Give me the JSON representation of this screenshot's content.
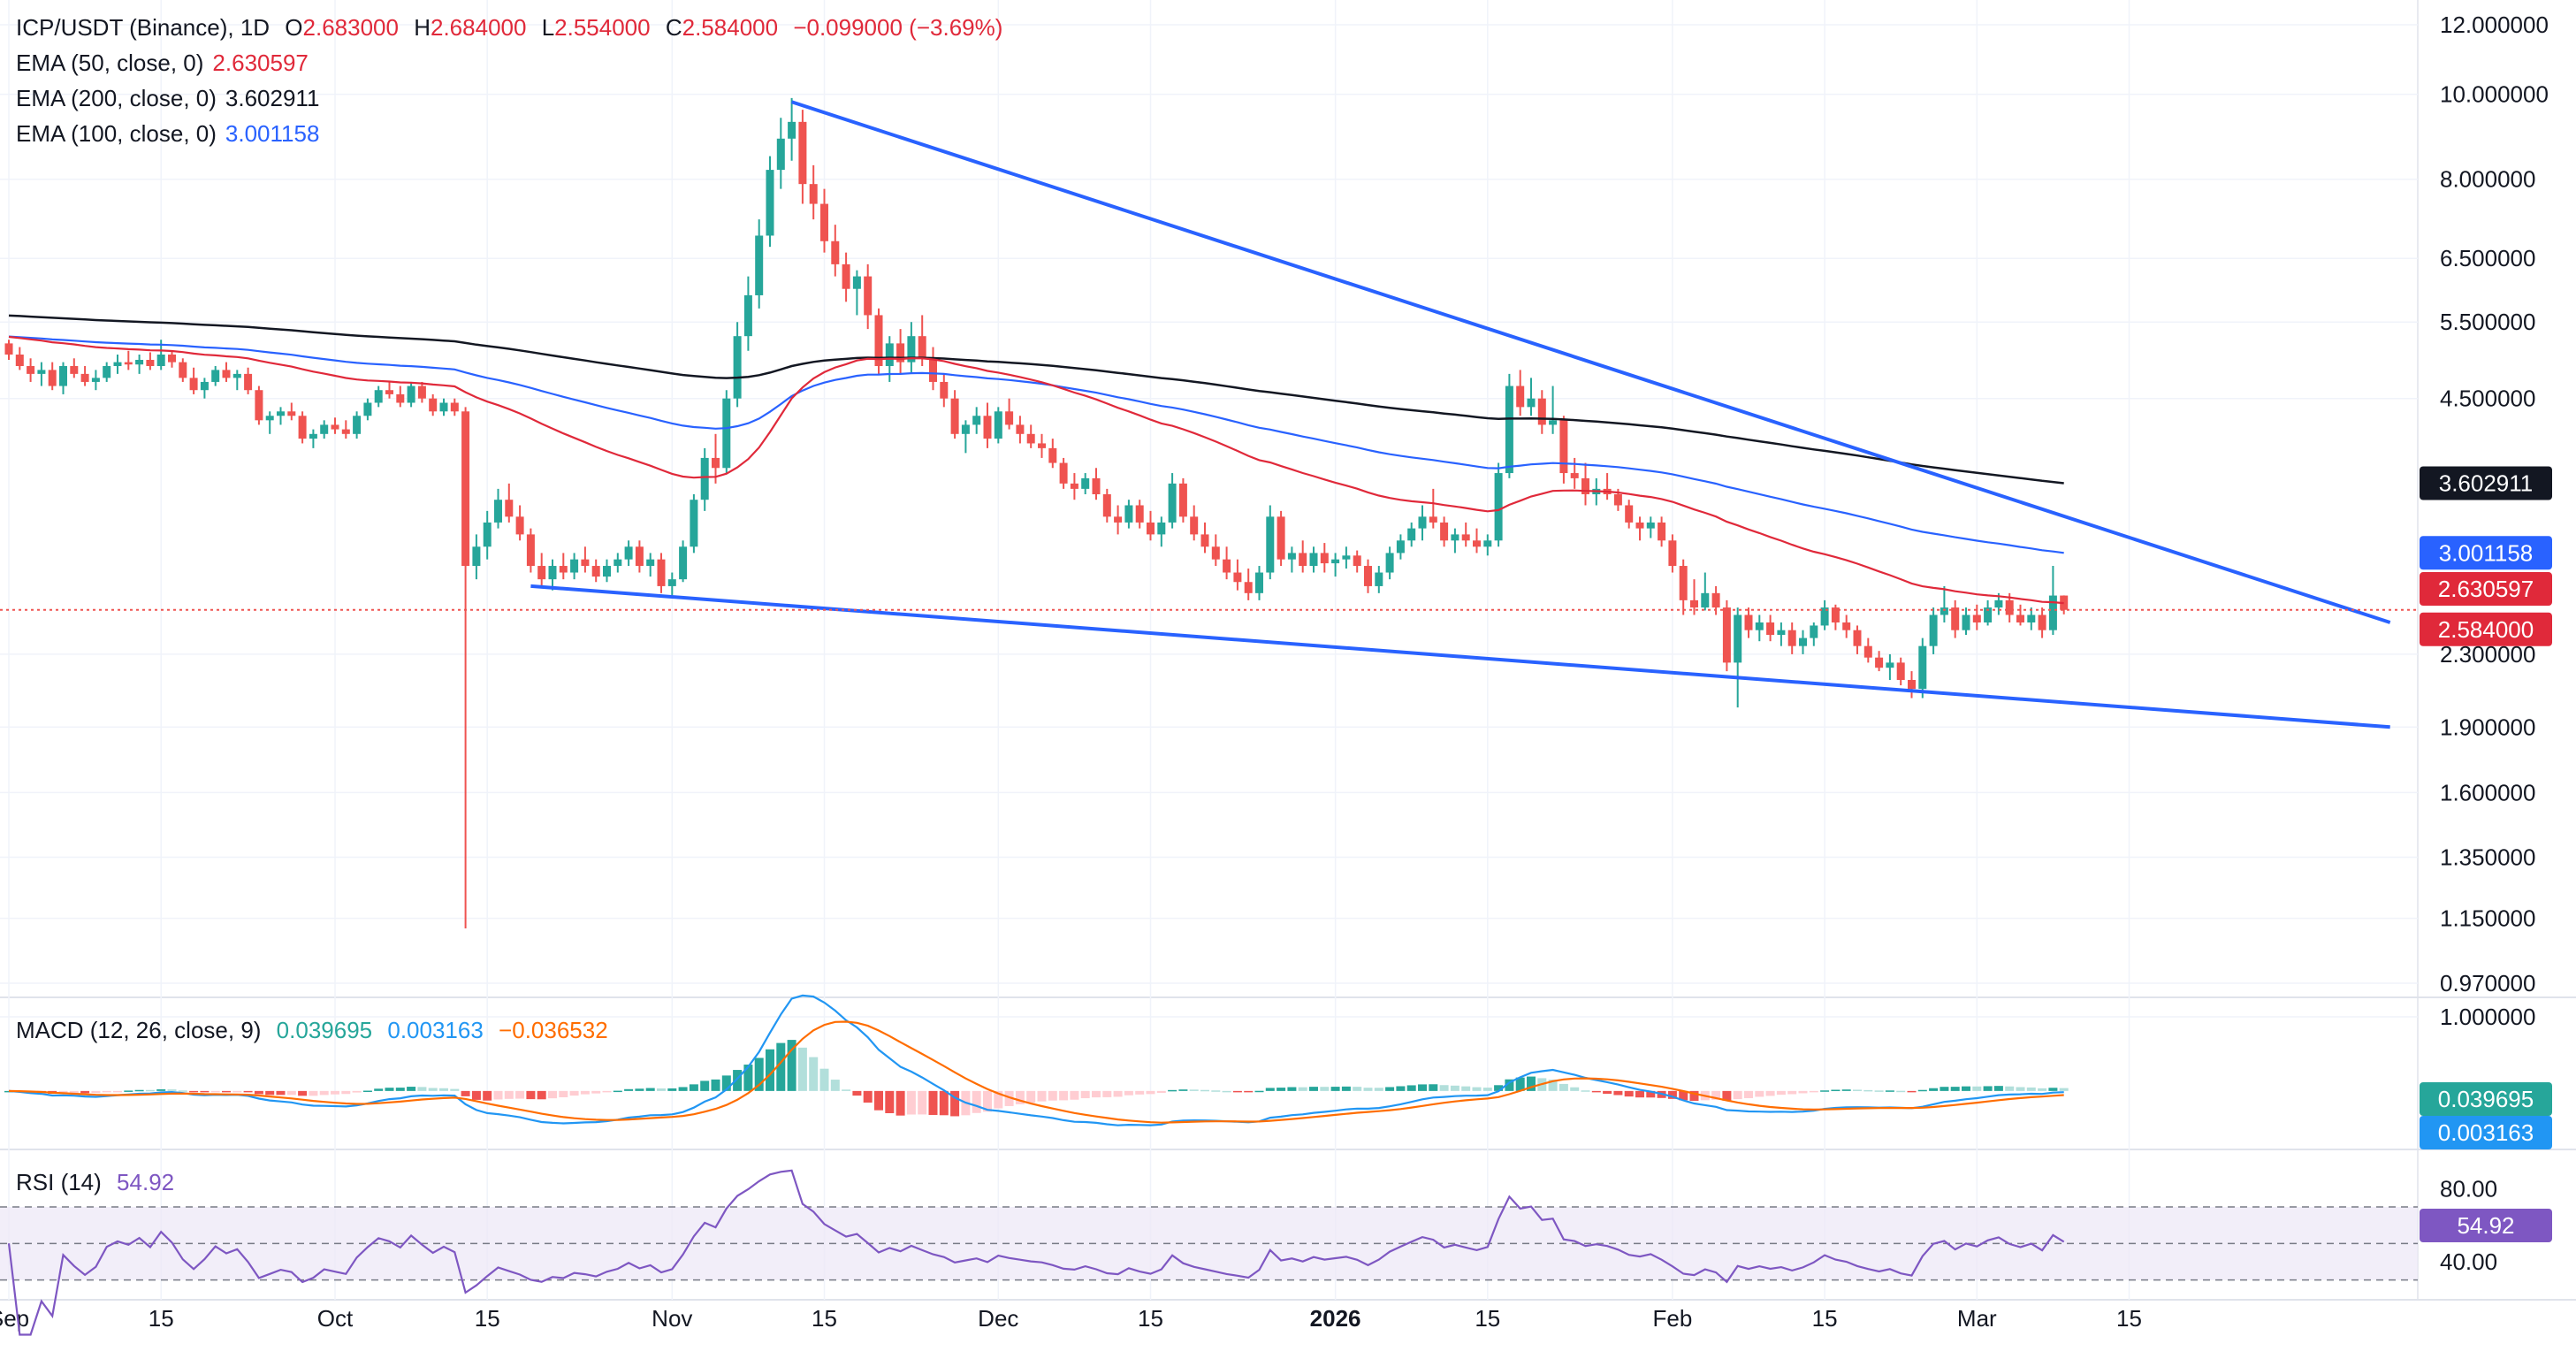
{
  "header": {
    "symbol": "ICP/USDT (Binance), 1D",
    "open_label": "O",
    "open": "2.683000",
    "high_label": "H",
    "high": "2.684000",
    "low_label": "L",
    "low": "2.554000",
    "close_label": "C",
    "close": "2.584000",
    "change": "−0.099000 (−3.69%)"
  },
  "indicators": {
    "ema50": {
      "label": "EMA (50, close, 0)",
      "value": "2.630597",
      "color": "#e0293a"
    },
    "ema200": {
      "label": "EMA (200, close, 0)",
      "value": "3.602911",
      "color": "#131722"
    },
    "ema100": {
      "label": "EMA (100, close, 0)",
      "value": "3.001158",
      "color": "#2962ff"
    },
    "macd": {
      "label": "MACD (12, 26, close, 9)",
      "hist": "0.039695",
      "macd": "0.003163",
      "signal": "−0.036532"
    },
    "rsi": {
      "label": "RSI (14)",
      "value": "54.92"
    }
  },
  "price_badges": {
    "ema200": "3.602911",
    "ema100": "3.001158",
    "ema50": "2.630597",
    "last": "2.584000",
    "macd_hist": "0.039695",
    "macd": "0.003163",
    "rsi": "54.92"
  },
  "colors": {
    "up": "#26a69a",
    "down": "#ef5350",
    "ema50": "#e0293a",
    "ema100": "#2962ff",
    "ema200": "#131722",
    "trendline": "#2962ff",
    "macd": "#2196f3",
    "signal": "#ff6d00",
    "rsi": "#7e57c2"
  },
  "chart_data": {
    "type": "candlestick",
    "price_axis": {
      "scale": "log",
      "ticks": [
        "12.000000",
        "10.000000",
        "8.000000",
        "6.500000",
        "5.500000",
        "4.500000",
        "2.300000",
        "1.900000",
        "1.600000",
        "1.350000",
        "1.150000",
        "0.970000"
      ]
    },
    "macd_axis_ticks": [
      "1.000000"
    ],
    "rsi_axis_ticks": [
      "80.00",
      "40.00"
    ],
    "time_axis": {
      "labels": [
        "Sep",
        "15",
        "Oct",
        "15",
        "Nov",
        "15",
        "Dec",
        "15",
        "2026",
        "15",
        "Feb",
        "15",
        "Mar",
        "15"
      ],
      "label_days": [
        0,
        14,
        30,
        44,
        61,
        75,
        91,
        105,
        122,
        136,
        153,
        167,
        181,
        195
      ]
    },
    "candles": [
      [
        5.2,
        5.25,
        4.98,
        5.05
      ],
      [
        5.05,
        5.15,
        4.85,
        4.9
      ],
      [
        4.9,
        5.0,
        4.7,
        4.8
      ],
      [
        4.8,
        4.95,
        4.65,
        4.85
      ],
      [
        4.85,
        4.95,
        4.6,
        4.65
      ],
      [
        4.65,
        4.95,
        4.55,
        4.9
      ],
      [
        4.9,
        5.0,
        4.75,
        4.8
      ],
      [
        4.8,
        4.9,
        4.65,
        4.7
      ],
      [
        4.7,
        4.85,
        4.6,
        4.75
      ],
      [
        4.75,
        4.95,
        4.7,
        4.9
      ],
      [
        4.9,
        5.05,
        4.8,
        4.95
      ],
      [
        4.95,
        5.1,
        4.85,
        4.92
      ],
      [
        4.92,
        5.05,
        4.8,
        4.98
      ],
      [
        4.98,
        5.08,
        4.85,
        4.9
      ],
      [
        4.9,
        5.25,
        4.85,
        5.05
      ],
      [
        5.05,
        5.1,
        4.88,
        4.95
      ],
      [
        4.95,
        5.0,
        4.7,
        4.75
      ],
      [
        4.75,
        4.88,
        4.55,
        4.6
      ],
      [
        4.6,
        4.75,
        4.5,
        4.7
      ],
      [
        4.7,
        4.9,
        4.65,
        4.85
      ],
      [
        4.85,
        4.95,
        4.7,
        4.75
      ],
      [
        4.75,
        4.85,
        4.6,
        4.8
      ],
      [
        4.8,
        4.88,
        4.55,
        4.6
      ],
      [
        4.6,
        4.65,
        4.2,
        4.25
      ],
      [
        4.25,
        4.35,
        4.1,
        4.3
      ],
      [
        4.3,
        4.4,
        4.2,
        4.35
      ],
      [
        4.35,
        4.45,
        4.25,
        4.3
      ],
      [
        4.3,
        4.35,
        4.0,
        4.05
      ],
      [
        4.05,
        4.15,
        3.95,
        4.1
      ],
      [
        4.1,
        4.25,
        4.05,
        4.2
      ],
      [
        4.2,
        4.28,
        4.1,
        4.15
      ],
      [
        4.15,
        4.25,
        4.05,
        4.1
      ],
      [
        4.1,
        4.35,
        4.05,
        4.3
      ],
      [
        4.3,
        4.5,
        4.25,
        4.45
      ],
      [
        4.45,
        4.65,
        4.4,
        4.6
      ],
      [
        4.6,
        4.7,
        4.5,
        4.55
      ],
      [
        4.55,
        4.65,
        4.4,
        4.45
      ],
      [
        4.45,
        4.7,
        4.4,
        4.65
      ],
      [
        4.65,
        4.7,
        4.45,
        4.5
      ],
      [
        4.5,
        4.55,
        4.3,
        4.35
      ],
      [
        4.35,
        4.5,
        4.3,
        4.45
      ],
      [
        4.45,
        4.5,
        4.3,
        4.35
      ],
      [
        4.35,
        4.4,
        1.12,
        2.9
      ],
      [
        2.9,
        3.15,
        2.8,
        3.05
      ],
      [
        3.05,
        3.35,
        2.95,
        3.25
      ],
      [
        3.25,
        3.55,
        3.2,
        3.45
      ],
      [
        3.45,
        3.6,
        3.25,
        3.3
      ],
      [
        3.3,
        3.4,
        3.1,
        3.15
      ],
      [
        3.15,
        3.2,
        2.85,
        2.9
      ],
      [
        2.9,
        3.0,
        2.75,
        2.8
      ],
      [
        2.8,
        2.95,
        2.72,
        2.9
      ],
      [
        2.9,
        3.0,
        2.8,
        2.85
      ],
      [
        2.85,
        3.0,
        2.8,
        2.95
      ],
      [
        2.95,
        3.05,
        2.85,
        2.9
      ],
      [
        2.9,
        2.95,
        2.78,
        2.82
      ],
      [
        2.82,
        2.95,
        2.78,
        2.9
      ],
      [
        2.9,
        3.0,
        2.85,
        2.95
      ],
      [
        2.95,
        3.1,
        2.9,
        3.05
      ],
      [
        3.05,
        3.1,
        2.85,
        2.9
      ],
      [
        2.9,
        3.0,
        2.82,
        2.95
      ],
      [
        2.95,
        3.0,
        2.7,
        2.75
      ],
      [
        2.75,
        2.85,
        2.68,
        2.8
      ],
      [
        2.8,
        3.1,
        2.78,
        3.05
      ],
      [
        3.05,
        3.5,
        3.0,
        3.45
      ],
      [
        3.45,
        3.95,
        3.35,
        3.85
      ],
      [
        3.85,
        4.1,
        3.6,
        3.75
      ],
      [
        3.75,
        4.6,
        3.7,
        4.5
      ],
      [
        4.5,
        5.5,
        4.4,
        5.3
      ],
      [
        5.3,
        6.2,
        5.1,
        5.9
      ],
      [
        5.9,
        7.2,
        5.7,
        6.9
      ],
      [
        6.9,
        8.5,
        6.7,
        8.2
      ],
      [
        8.2,
        9.4,
        7.8,
        8.9
      ],
      [
        8.9,
        9.9,
        8.4,
        9.3
      ],
      [
        9.3,
        9.6,
        7.5,
        7.9
      ],
      [
        7.9,
        8.3,
        7.2,
        7.5
      ],
      [
        7.5,
        7.8,
        6.6,
        6.8
      ],
      [
        6.8,
        7.1,
        6.2,
        6.4
      ],
      [
        6.4,
        6.6,
        5.8,
        6.0
      ],
      [
        6.0,
        6.3,
        5.6,
        6.2
      ],
      [
        6.2,
        6.4,
        5.4,
        5.6
      ],
      [
        5.6,
        5.7,
        4.8,
        4.9
      ],
      [
        4.9,
        5.3,
        4.7,
        5.2
      ],
      [
        5.2,
        5.4,
        4.8,
        4.95
      ],
      [
        4.95,
        5.5,
        4.8,
        5.3
      ],
      [
        5.3,
        5.6,
        4.9,
        5.0
      ],
      [
        5.0,
        5.15,
        4.6,
        4.7
      ],
      [
        4.7,
        4.8,
        4.4,
        4.5
      ],
      [
        4.5,
        4.6,
        4.05,
        4.1
      ],
      [
        4.1,
        4.25,
        3.9,
        4.2
      ],
      [
        4.2,
        4.4,
        4.1,
        4.3
      ],
      [
        4.3,
        4.45,
        3.95,
        4.05
      ],
      [
        4.05,
        4.4,
        4.0,
        4.35
      ],
      [
        4.35,
        4.5,
        4.15,
        4.2
      ],
      [
        4.2,
        4.3,
        4.0,
        4.1
      ],
      [
        4.1,
        4.2,
        3.95,
        4.0
      ],
      [
        4.0,
        4.1,
        3.85,
        3.95
      ],
      [
        3.95,
        4.05,
        3.75,
        3.8
      ],
      [
        3.8,
        3.85,
        3.55,
        3.6
      ],
      [
        3.6,
        3.7,
        3.45,
        3.55
      ],
      [
        3.55,
        3.7,
        3.5,
        3.65
      ],
      [
        3.65,
        3.75,
        3.45,
        3.5
      ],
      [
        3.5,
        3.55,
        3.25,
        3.3
      ],
      [
        3.3,
        3.4,
        3.15,
        3.25
      ],
      [
        3.25,
        3.45,
        3.2,
        3.4
      ],
      [
        3.4,
        3.45,
        3.2,
        3.25
      ],
      [
        3.25,
        3.35,
        3.1,
        3.15
      ],
      [
        3.15,
        3.3,
        3.05,
        3.25
      ],
      [
        3.25,
        3.7,
        3.2,
        3.6
      ],
      [
        3.6,
        3.65,
        3.25,
        3.3
      ],
      [
        3.3,
        3.4,
        3.1,
        3.15
      ],
      [
        3.15,
        3.25,
        3.0,
        3.05
      ],
      [
        3.05,
        3.15,
        2.9,
        2.95
      ],
      [
        2.95,
        3.05,
        2.8,
        2.85
      ],
      [
        2.85,
        2.95,
        2.72,
        2.78
      ],
      [
        2.78,
        2.88,
        2.65,
        2.7
      ],
      [
        2.7,
        2.9,
        2.65,
        2.85
      ],
      [
        2.85,
        3.4,
        2.8,
        3.3
      ],
      [
        3.3,
        3.35,
        2.9,
        2.95
      ],
      [
        2.95,
        3.05,
        2.85,
        3.0
      ],
      [
        3.0,
        3.1,
        2.85,
        2.9
      ],
      [
        2.9,
        3.05,
        2.85,
        3.0
      ],
      [
        3.0,
        3.08,
        2.85,
        2.92
      ],
      [
        2.92,
        3.0,
        2.82,
        2.95
      ],
      [
        2.95,
        3.05,
        2.88,
        2.98
      ],
      [
        2.98,
        3.02,
        2.85,
        2.9
      ],
      [
        2.9,
        2.95,
        2.7,
        2.75
      ],
      [
        2.75,
        2.9,
        2.7,
        2.85
      ],
      [
        2.85,
        3.05,
        2.8,
        3.0
      ],
      [
        3.0,
        3.15,
        2.95,
        3.1
      ],
      [
        3.1,
        3.25,
        3.05,
        3.2
      ],
      [
        3.2,
        3.4,
        3.1,
        3.3
      ],
      [
        3.3,
        3.55,
        3.2,
        3.25
      ],
      [
        3.25,
        3.3,
        3.05,
        3.1
      ],
      [
        3.1,
        3.2,
        3.0,
        3.15
      ],
      [
        3.15,
        3.25,
        3.05,
        3.1
      ],
      [
        3.1,
        3.2,
        3.0,
        3.05
      ],
      [
        3.05,
        3.15,
        2.98,
        3.1
      ],
      [
        3.1,
        3.8,
        3.05,
        3.7
      ],
      [
        3.7,
        4.8,
        3.65,
        4.65
      ],
      [
        4.65,
        4.85,
        4.3,
        4.4
      ],
      [
        4.4,
        4.75,
        4.3,
        4.5
      ],
      [
        4.5,
        4.6,
        4.1,
        4.2
      ],
      [
        4.2,
        4.65,
        4.1,
        4.25
      ],
      [
        4.25,
        4.3,
        3.6,
        3.7
      ],
      [
        3.7,
        3.85,
        3.55,
        3.65
      ],
      [
        3.65,
        3.8,
        3.4,
        3.5
      ],
      [
        3.5,
        3.65,
        3.4,
        3.55
      ],
      [
        3.55,
        3.7,
        3.45,
        3.5
      ],
      [
        3.5,
        3.55,
        3.35,
        3.4
      ],
      [
        3.4,
        3.45,
        3.2,
        3.25
      ],
      [
        3.25,
        3.3,
        3.1,
        3.2
      ],
      [
        3.2,
        3.3,
        3.12,
        3.25
      ],
      [
        3.25,
        3.3,
        3.05,
        3.1
      ],
      [
        3.1,
        3.15,
        2.85,
        2.9
      ],
      [
        2.9,
        2.95,
        2.55,
        2.65
      ],
      [
        2.65,
        2.8,
        2.55,
        2.6
      ],
      [
        2.6,
        2.85,
        2.58,
        2.7
      ],
      [
        2.7,
        2.75,
        2.55,
        2.6
      ],
      [
        2.6,
        2.65,
        2.2,
        2.25
      ],
      [
        2.25,
        2.6,
        2.0,
        2.55
      ],
      [
        2.55,
        2.6,
        2.4,
        2.45
      ],
      [
        2.45,
        2.55,
        2.38,
        2.5
      ],
      [
        2.5,
        2.55,
        2.38,
        2.42
      ],
      [
        2.42,
        2.5,
        2.35,
        2.45
      ],
      [
        2.45,
        2.5,
        2.3,
        2.35
      ],
      [
        2.35,
        2.45,
        2.3,
        2.4
      ],
      [
        2.4,
        2.5,
        2.35,
        2.48
      ],
      [
        2.48,
        2.65,
        2.45,
        2.6
      ],
      [
        2.6,
        2.62,
        2.45,
        2.5
      ],
      [
        2.5,
        2.55,
        2.4,
        2.45
      ],
      [
        2.45,
        2.48,
        2.3,
        2.35
      ],
      [
        2.35,
        2.4,
        2.25,
        2.28
      ],
      [
        2.28,
        2.32,
        2.2,
        2.22
      ],
      [
        2.22,
        2.3,
        2.15,
        2.25
      ],
      [
        2.25,
        2.28,
        2.12,
        2.15
      ],
      [
        2.15,
        2.2,
        2.05,
        2.1
      ],
      [
        2.1,
        2.4,
        2.05,
        2.35
      ],
      [
        2.35,
        2.6,
        2.3,
        2.55
      ],
      [
        2.55,
        2.75,
        2.5,
        2.6
      ],
      [
        2.6,
        2.65,
        2.4,
        2.45
      ],
      [
        2.45,
        2.6,
        2.42,
        2.55
      ],
      [
        2.55,
        2.62,
        2.45,
        2.5
      ],
      [
        2.5,
        2.65,
        2.48,
        2.6
      ],
      [
        2.6,
        2.7,
        2.55,
        2.65
      ],
      [
        2.65,
        2.7,
        2.5,
        2.55
      ],
      [
        2.55,
        2.62,
        2.48,
        2.5
      ],
      [
        2.5,
        2.6,
        2.45,
        2.55
      ],
      [
        2.55,
        2.6,
        2.4,
        2.45
      ],
      [
        2.45,
        2.9,
        2.42,
        2.683
      ],
      [
        2.683,
        2.684,
        2.554,
        2.584
      ]
    ],
    "ema50_end": 2.630597,
    "ema100_end": 3.001158,
    "ema200_end": 3.602911,
    "trendlines": [
      {
        "from": [
          72,
          9.8
        ],
        "to": [
          219,
          2.5
        ]
      },
      {
        "from": [
          48,
          2.75
        ],
        "to": [
          219,
          1.9
        ]
      }
    ]
  }
}
